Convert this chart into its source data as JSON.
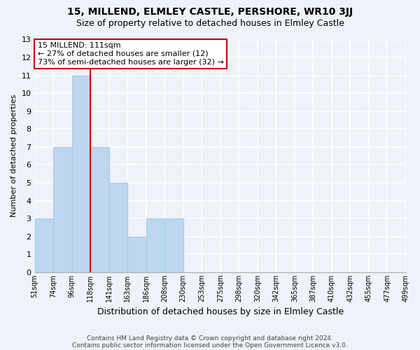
{
  "title": "15, MILLEND, ELMLEY CASTLE, PERSHORE, WR10 3JJ",
  "subtitle": "Size of property relative to detached houses in Elmley Castle",
  "xlabel": "Distribution of detached houses by size in Elmley Castle",
  "ylabel": "Number of detached properties",
  "bar_labels": [
    "51sqm",
    "74sqm",
    "96sqm",
    "118sqm",
    "141sqm",
    "163sqm",
    "186sqm",
    "208sqm",
    "230sqm",
    "253sqm",
    "275sqm",
    "298sqm",
    "320sqm",
    "342sqm",
    "365sqm",
    "387sqm",
    "410sqm",
    "432sqm",
    "455sqm",
    "477sqm",
    "499sqm"
  ],
  "bar_values": [
    3,
    7,
    11,
    7,
    5,
    2,
    3,
    3,
    0,
    0,
    0,
    0,
    0,
    0,
    0,
    0,
    0,
    0,
    0,
    0
  ],
  "bar_color": "#bdd7ee",
  "bar_edge_color": "#a8c8e8",
  "property_line_x_label": "118sqm",
  "property_size": "111sqm",
  "annotation_title": "15 MILLEND: 111sqm",
  "annotation_line1": "← 27% of detached houses are smaller (12)",
  "annotation_line2": "73% of semi-detached houses are larger (32) →",
  "annotation_box_color": "#ffffff",
  "annotation_box_edge": "#cc0000",
  "line_color": "#cc0000",
  "ylim": [
    0,
    13
  ],
  "yticks": [
    0,
    1,
    2,
    3,
    4,
    5,
    6,
    7,
    8,
    9,
    10,
    11,
    12,
    13
  ],
  "footer_line1": "Contains HM Land Registry data © Crown copyright and database right 2024.",
  "footer_line2": "Contains public sector information licensed under the Open Government Licence v3.0.",
  "bg_color": "#eef2f9",
  "plot_bg_color": "#eef2f9",
  "grid_color": "#ffffff",
  "title_fontsize": 10,
  "subtitle_fontsize": 9
}
